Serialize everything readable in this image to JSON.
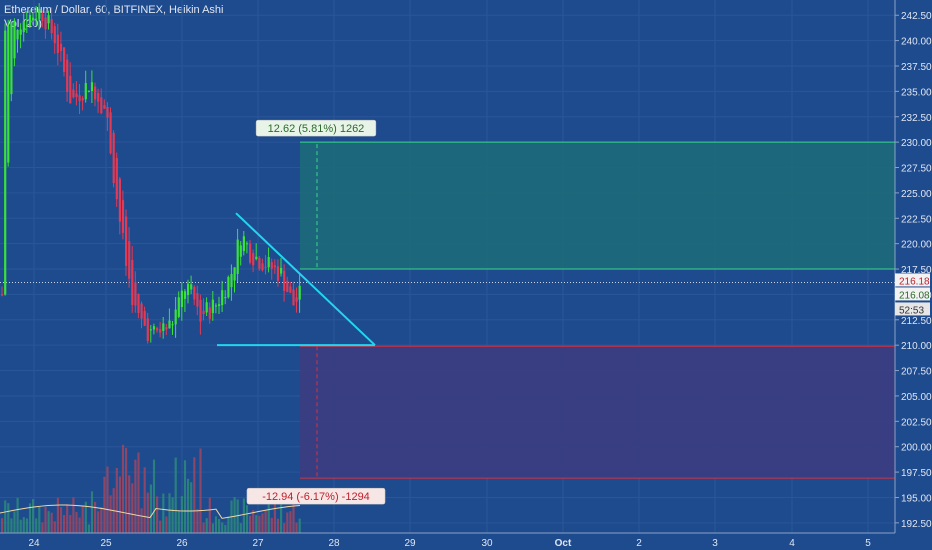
{
  "header": {
    "title": "Ethereum / Dollar, 60, BITFINEX, Heikin Ashi",
    "indicator": "Vol (20)"
  },
  "colors": {
    "background": "#1e4a8e",
    "up": "#39e239",
    "down": "#e23a55",
    "triangle": "#22d6f0",
    "target_zone": "#1d6a7a",
    "stop_zone": "#3b3d80",
    "target_line": "#3ad68a",
    "stop_line": "#d6303e"
  },
  "chart_data": {
    "type": "candlestick",
    "y_range": [
      191.5,
      244
    ],
    "y_ticks": [
      "242.50",
      "240.00",
      "237.50",
      "235.00",
      "232.50",
      "230.00",
      "227.50",
      "225.00",
      "222.50",
      "220.00",
      "217.50",
      "215.00",
      "212.50",
      "210.00",
      "207.50",
      "205.00",
      "202.50",
      "200.00",
      "197.50",
      "195.00",
      "192.50"
    ],
    "x_ticks": [
      "24",
      "25",
      "26",
      "27",
      "28",
      "29",
      "30",
      "Oct",
      "2",
      "3",
      "4",
      "5"
    ],
    "price_labels": {
      "last": "216.18",
      "secondary": "216.08",
      "countdown": "52:53"
    },
    "long_position": {
      "entry": 217.5,
      "target": 230,
      "stop": 209.9,
      "stop_target": 196.9,
      "profit_label": "12.62 (5.81%) 1262",
      "loss_label": "-12.94 (-6.17%) -1294"
    },
    "triangle": {
      "apex": {
        "x": "Sep 26 ~17:00",
        "y": 223
      },
      "right": {
        "x": "Sep 28 ~12:00",
        "y": 210
      },
      "base_left": {
        "x": "Sep 26 ~05:00",
        "y": 210
      }
    },
    "candles_note": "Heikin Ashi hourly candles Sep 23 - Sep 27"
  }
}
